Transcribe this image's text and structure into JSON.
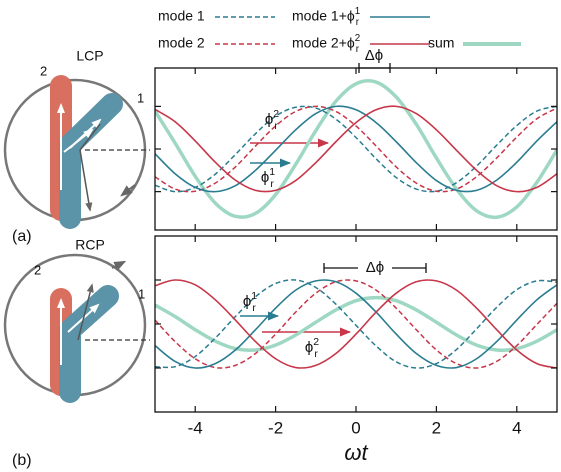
{
  "chart_data": [
    {
      "type": "line",
      "panel_label": "(a)",
      "polarization": "LCP",
      "antenna_labels": [
        "2",
        "1"
      ],
      "annotations": [
        "Δϕ",
        "ϕ_r^2",
        "ϕ_r^1"
      ],
      "x": [
        -5,
        -4.5,
        -4,
        -3.5,
        -3,
        -2.5,
        -2,
        -1.5,
        -1,
        -0.5,
        0,
        0.5,
        1,
        1.5,
        2,
        2.5,
        3,
        3.5,
        4,
        4.5,
        5
      ],
      "xlim": [
        -5,
        5
      ],
      "xticks": [
        -4,
        -2,
        0,
        2,
        4
      ],
      "ylim": [
        -1.9,
        1.9
      ],
      "yticks": [
        -1,
        0,
        1
      ],
      "series": [
        {
          "name": "mode 1",
          "color": "#2a7d91",
          "style": "dashed",
          "values": [
            -0.85,
            -1.0,
            -0.9,
            -0.59,
            -0.13,
            0.36,
            0.77,
            0.98,
            0.96,
            0.7,
            0.27,
            -0.23,
            -0.67,
            -0.94,
            -0.99,
            -0.79,
            -0.4,
            0.09,
            0.55,
            0.89,
            1.0
          ]
        },
        {
          "name": "mode 1+ϕ_r^1",
          "color": "#2a7d91",
          "style": "solid",
          "values": [
            -0.11,
            -0.58,
            -0.9,
            -1.0,
            -0.86,
            -0.5,
            -0.03,
            0.45,
            0.83,
            1.0,
            0.92,
            0.62,
            0.17,
            -0.32,
            -0.74,
            -0.97,
            -0.97,
            -0.73,
            -0.31,
            0.19,
            0.64
          ]
        },
        {
          "name": "mode 2",
          "color": "#c73649",
          "style": "dashed",
          "values": [
            -0.65,
            -0.94,
            -0.99,
            -0.8,
            -0.42,
            0.07,
            0.54,
            0.88,
            1.0,
            0.88,
            0.54,
            0.07,
            -0.42,
            -0.8,
            -0.99,
            -0.94,
            -0.65,
            -0.21,
            0.28,
            0.71,
            0.96
          ]
        },
        {
          "name": "mode 2+ϕ_r^2",
          "color": "#c73649",
          "style": "solid",
          "values": [
            0.93,
            0.64,
            0.19,
            -0.31,
            -0.73,
            -0.97,
            -0.97,
            -0.74,
            -0.32,
            0.17,
            0.62,
            0.92,
            1.0,
            0.83,
            0.45,
            -0.03,
            -0.5,
            -0.86,
            -1.0,
            -0.9,
            -0.58
          ]
        },
        {
          "name": "sum",
          "color": "#9ed8c3",
          "style": "thick",
          "values": [
            0.89,
            0.14,
            -0.64,
            -1.27,
            -1.58,
            -1.51,
            -1.07,
            -0.36,
            0.43,
            1.12,
            1.53,
            1.57,
            1.22,
            0.58,
            -0.21,
            -0.94,
            -1.45,
            -1.6,
            -1.36,
            -0.78,
            -0.02
          ]
        }
      ]
    },
    {
      "type": "line",
      "panel_label": "(b)",
      "polarization": "RCP",
      "antenna_labels": [
        "2",
        "1"
      ],
      "annotations": [
        "ϕ_r^1",
        "Δϕ",
        "ϕ_r^2"
      ],
      "x_label": "ωt",
      "x": [
        -5,
        -4.5,
        -4,
        -3.5,
        -3,
        -2.5,
        -2,
        -1.5,
        -1,
        -0.5,
        0,
        0.5,
        1,
        1.5,
        2,
        2.5,
        3,
        3.5,
        4,
        4.5,
        5
      ],
      "xlim": [
        -5,
        5
      ],
      "xticks": [
        -4,
        -2,
        0,
        2,
        4
      ],
      "ylim": [
        -2,
        2
      ],
      "yticks": [
        -1,
        0,
        1
      ],
      "series": [
        {
          "color": "#2a7d91",
          "style": "dashed",
          "values": [
            -0.97,
            -0.97,
            -0.74,
            -0.32,
            0.17,
            0.62,
            0.92,
            1.0,
            0.83,
            0.45,
            -0.03,
            -0.5,
            -0.86,
            -1.0,
            -0.9,
            -0.58,
            -0.11,
            0.38,
            0.78,
            0.98,
            0.95
          ]
        },
        {
          "color": "#2a7d91",
          "style": "solid",
          "values": [
            -0.49,
            -0.85,
            -1.0,
            -0.9,
            -0.59,
            -0.13,
            0.36,
            0.77,
            0.98,
            0.96,
            0.7,
            0.27,
            -0.23,
            -0.67,
            -0.94,
            -0.99,
            -0.79,
            -0.4,
            0.09,
            0.55,
            0.89
          ]
        },
        {
          "color": "#c73649",
          "style": "dashed",
          "values": [
            0.09,
            -0.4,
            -0.79,
            -0.99,
            -0.94,
            -0.67,
            -0.23,
            0.27,
            0.7,
            0.96,
            0.98,
            0.77,
            0.36,
            -0.13,
            -0.59,
            -0.9,
            -1.0,
            -0.85,
            -0.49,
            -0.01,
            0.47
          ]
        },
        {
          "color": "#c73649",
          "style": "solid",
          "values": [
            0.87,
            1.0,
            0.89,
            0.55,
            0.09,
            -0.4,
            -0.79,
            -0.99,
            -0.94,
            -0.67,
            -0.23,
            0.27,
            0.7,
            0.96,
            0.98,
            0.77,
            0.36,
            -0.13,
            -0.59,
            -0.9,
            -1.0
          ]
        },
        {
          "color": "#9ed8c3",
          "style": "thick",
          "values": [
            0.43,
            0.17,
            -0.13,
            -0.39,
            -0.56,
            -0.59,
            -0.48,
            -0.25,
            0.04,
            0.32,
            0.53,
            0.6,
            0.53,
            0.32,
            0.04,
            -0.25,
            -0.48,
            -0.59,
            -0.56,
            -0.39,
            -0.13
          ]
        }
      ]
    }
  ]
}
